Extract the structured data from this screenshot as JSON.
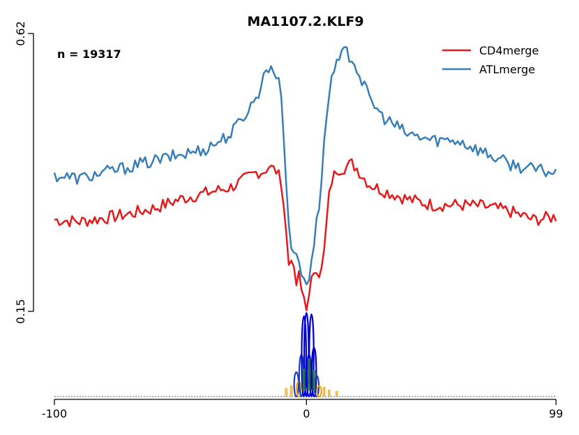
{
  "chart_data": {
    "type": "line",
    "title": "MA1107.2.KLF9",
    "annotation": "n = 19317",
    "xlim": [
      -100,
      99
    ],
    "ylim": [
      0.15,
      0.62
    ],
    "x_ticks": [
      "-100",
      "0",
      "99"
    ],
    "y_ticks": [
      "0.15",
      "0.62"
    ],
    "legend_position": "top-right",
    "grid": false,
    "motif_logo": "KLF9 sequence logo (C/G-rich, centered at 0)",
    "series": [
      {
        "name": "CD4merge",
        "color": "#e41a1c",
        "keypoints": [
          [
            -100,
            0.305
          ],
          [
            -90,
            0.302
          ],
          [
            -80,
            0.308
          ],
          [
            -70,
            0.315
          ],
          [
            -60,
            0.325
          ],
          [
            -50,
            0.34
          ],
          [
            -40,
            0.35
          ],
          [
            -30,
            0.36
          ],
          [
            -25,
            0.372
          ],
          [
            -20,
            0.385
          ],
          [
            -17,
            0.387
          ],
          [
            -15,
            0.395
          ],
          [
            -12,
            0.388
          ],
          [
            -10,
            0.37
          ],
          [
            -9,
            0.33
          ],
          [
            -8,
            0.28
          ],
          [
            -7,
            0.23
          ],
          [
            -6,
            0.245
          ],
          [
            -5,
            0.215
          ],
          [
            -4,
            0.195
          ],
          [
            -3,
            0.21
          ],
          [
            -2,
            0.185
          ],
          [
            -1,
            0.175
          ],
          [
            0,
            0.16
          ],
          [
            1,
            0.17
          ],
          [
            2,
            0.2
          ],
          [
            3,
            0.22
          ],
          [
            4,
            0.225
          ],
          [
            5,
            0.215
          ],
          [
            6,
            0.22
          ],
          [
            7,
            0.25
          ],
          [
            8,
            0.3
          ],
          [
            9,
            0.345
          ],
          [
            10,
            0.37
          ],
          [
            12,
            0.39
          ],
          [
            15,
            0.393
          ],
          [
            18,
            0.4
          ],
          [
            20,
            0.392
          ],
          [
            22,
            0.38
          ],
          [
            25,
            0.365
          ],
          [
            30,
            0.355
          ],
          [
            40,
            0.34
          ],
          [
            50,
            0.33
          ],
          [
            60,
            0.33
          ],
          [
            70,
            0.328
          ],
          [
            80,
            0.32
          ],
          [
            90,
            0.305
          ],
          [
            99,
            0.31
          ]
        ]
      },
      {
        "name": "ATLmerge",
        "color": "#377eb8",
        "keypoints": [
          [
            -100,
            0.38
          ],
          [
            -90,
            0.375
          ],
          [
            -80,
            0.385
          ],
          [
            -70,
            0.395
          ],
          [
            -60,
            0.405
          ],
          [
            -50,
            0.415
          ],
          [
            -40,
            0.425
          ],
          [
            -30,
            0.45
          ],
          [
            -25,
            0.48
          ],
          [
            -20,
            0.51
          ],
          [
            -17,
            0.545
          ],
          [
            -16,
            0.56
          ],
          [
            -14,
            0.565
          ],
          [
            -12,
            0.55
          ],
          [
            -10,
            0.52
          ],
          [
            -9,
            0.45
          ],
          [
            -8,
            0.36
          ],
          [
            -7,
            0.3
          ],
          [
            -6,
            0.265
          ],
          [
            -5,
            0.24
          ],
          [
            -4,
            0.25
          ],
          [
            -3,
            0.23
          ],
          [
            -2,
            0.215
          ],
          [
            -1,
            0.205
          ],
          [
            0,
            0.2
          ],
          [
            1,
            0.21
          ],
          [
            2,
            0.24
          ],
          [
            3,
            0.265
          ],
          [
            4,
            0.3
          ],
          [
            5,
            0.33
          ],
          [
            6,
            0.38
          ],
          [
            7,
            0.43
          ],
          [
            8,
            0.48
          ],
          [
            9,
            0.52
          ],
          [
            10,
            0.545
          ],
          [
            13,
            0.575
          ],
          [
            15,
            0.59
          ],
          [
            18,
            0.58
          ],
          [
            20,
            0.56
          ],
          [
            22,
            0.54
          ],
          [
            25,
            0.51
          ],
          [
            30,
            0.48
          ],
          [
            40,
            0.45
          ],
          [
            50,
            0.44
          ],
          [
            60,
            0.44
          ],
          [
            70,
            0.42
          ],
          [
            80,
            0.4
          ],
          [
            90,
            0.39
          ],
          [
            99,
            0.385
          ]
        ]
      }
    ]
  }
}
